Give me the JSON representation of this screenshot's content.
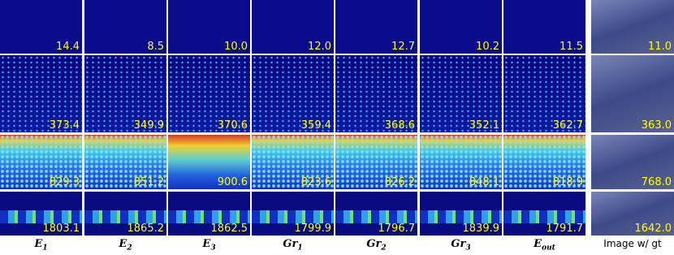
{
  "columns": [
    {
      "main": "E",
      "sub": "1"
    },
    {
      "main": "E",
      "sub": "2"
    },
    {
      "main": "E",
      "sub": "3"
    },
    {
      "main": "Gr",
      "sub": "1"
    },
    {
      "main": "Gr",
      "sub": "2"
    },
    {
      "main": "Gr",
      "sub": "3"
    },
    {
      "main": "E",
      "sub": "out"
    },
    {
      "main": "Image w/ gt"
    }
  ],
  "rows": [
    {
      "values": [
        "14.4",
        "8.5",
        "10.0",
        "12.0",
        "12.7",
        "10.2",
        "11.5",
        "11.0"
      ]
    },
    {
      "values": [
        "373.4",
        "349.9",
        "370.6",
        "359.4",
        "368.6",
        "352.1",
        "362.7",
        "363.0"
      ]
    },
    {
      "values": [
        "829.3",
        "851.2",
        "900.6",
        "823.6",
        "826.2",
        "848.1",
        "818.9",
        "768.0"
      ]
    },
    {
      "values": [
        "1803.1",
        "1865.2",
        "1862.5",
        "1799.9",
        "1796.7",
        "1839.9",
        "1791.7",
        "1642.0"
      ]
    }
  ]
}
